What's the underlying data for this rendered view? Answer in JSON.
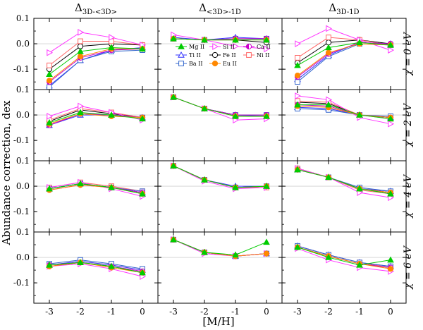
{
  "chart_data": {
    "type": "line",
    "title": "",
    "xlabel": "[M/H]",
    "ylabel": "Abundance correction, dex",
    "x": [
      -3,
      -2,
      -1,
      0
    ],
    "x_ticks": [
      "-3",
      "-2",
      "-1",
      "0"
    ],
    "ylim": [
      -0.18,
      0.1
    ],
    "y_ticks": [
      0.1,
      0.0,
      -0.1
    ],
    "y_tick_labels": [
      "0.1",
      "0.0",
      "-0.1"
    ],
    "grid": false,
    "zero_line": true,
    "column_titles": [
      {
        "main": "Δ",
        "sub": "3D-<3D>"
      },
      {
        "main": "Δ",
        "sub": "<3D>-1D"
      },
      {
        "main": "Δ",
        "sub": "3D-1D"
      }
    ],
    "row_titles": [
      "χ = 0 eV",
      "χ = 2 eV",
      "χ = 4 eV",
      "χ = 6 eV"
    ],
    "legend": {
      "placement": "inside top-left panel of column 2",
      "entries": [
        {
          "key": "MgII",
          "label": "Mg II"
        },
        {
          "key": "SiII",
          "label": "Si II"
        },
        {
          "key": "CaII",
          "label": "Ca II"
        },
        {
          "key": "TiII",
          "label": "Ti II"
        },
        {
          "key": "FeII",
          "label": "Fe II"
        },
        {
          "key": "NiII",
          "label": "Ni II"
        },
        {
          "key": "BaII",
          "label": "Ba II"
        },
        {
          "key": "EuII",
          "label": "Eu II"
        }
      ]
    },
    "series_styles": {
      "MgII": {
        "color": "#00cc00",
        "marker": "triangle-up",
        "filled": true
      },
      "SiII": {
        "color": "#ff33ff",
        "marker": "triangle-right",
        "filled": false
      },
      "CaII": {
        "color": "#cc00cc",
        "marker": "half-circle",
        "filled": true
      },
      "TiII": {
        "color": "#3333ff",
        "marker": "triangle-up",
        "filled": false
      },
      "FeII": {
        "color": "#000000",
        "marker": "circle",
        "filled": false
      },
      "NiII": {
        "color": "#ff6666",
        "marker": "square",
        "filled": false
      },
      "BaII": {
        "color": "#3366cc",
        "marker": "square",
        "filled": false
      },
      "EuII": {
        "color": "#ff8800",
        "marker": "circle",
        "filled": true
      }
    },
    "panels": [
      [
        {
          "series": {
            "MgII": [
              -0.12,
              -0.03,
              -0.015,
              -0.02
            ],
            "SiII": [
              -0.035,
              0.045,
              0.025,
              -0.005
            ],
            "CaII": [
              -0.15,
              -0.055,
              -0.025,
              -0.02
            ],
            "TiII": [
              -0.165,
              -0.065,
              -0.025,
              -0.015
            ],
            "FeII": [
              -0.1,
              -0.01,
              0.0,
              -0.005
            ],
            "NiII": [
              -0.085,
              0.01,
              0.01,
              -0.005
            ],
            "BaII": [
              -0.17,
              -0.065,
              -0.03,
              -0.025
            ],
            "EuII": [
              -0.145,
              -0.05,
              -0.02,
              -0.02
            ]
          }
        },
        {
          "series": {
            "MgII": [
              0.02,
              0.015,
              0.015,
              0.015
            ],
            "SiII": [
              0.035,
              0.015,
              -0.01,
              -0.02
            ],
            "CaII": [
              0.02,
              0.015,
              0.02,
              0.02
            ],
            "TiII": [
              0.025,
              0.015,
              0.025,
              0.02
            ],
            "FeII": [
              0.02,
              0.015,
              0.015,
              0.005
            ],
            "NiII": [
              0.02,
              0.015,
              0.02,
              0.02
            ],
            "BaII": [
              0.02,
              0.015,
              0.02,
              0.02
            ],
            "EuII": [
              0.02,
              0.015,
              0.015,
              0.015
            ]
          }
        },
        {
          "series": {
            "MgII": [
              -0.085,
              -0.015,
              0.005,
              -0.005
            ],
            "SiII": [
              0.0,
              0.06,
              0.015,
              -0.025
            ],
            "CaII": [
              -0.13,
              -0.04,
              0.005,
              0.0
            ],
            "TiII": [
              -0.14,
              -0.045,
              0.005,
              0.0
            ],
            "FeII": [
              -0.075,
              0.005,
              0.015,
              0.0
            ],
            "NiII": [
              -0.055,
              0.025,
              0.015,
              -0.005
            ],
            "BaII": [
              -0.15,
              -0.05,
              0.0,
              -0.005
            ],
            "EuII": [
              -0.125,
              -0.035,
              0.0,
              -0.005
            ]
          }
        }
      ],
      [
        {
          "series": {
            "MgII": [
              -0.03,
              0.01,
              0.0,
              -0.015
            ],
            "SiII": [
              -0.005,
              0.035,
              0.01,
              -0.02
            ],
            "CaII": [
              -0.04,
              0.005,
              0.0,
              -0.01
            ],
            "TiII": [
              -0.04,
              0.0,
              0.0,
              -0.01
            ],
            "FeII": [
              -0.025,
              0.02,
              0.005,
              -0.01
            ],
            "NiII": [
              -0.02,
              0.025,
              0.01,
              -0.01
            ],
            "BaII": [
              -0.04,
              0.005,
              0.0,
              -0.01
            ],
            "EuII": [
              -0.035,
              0.005,
              -0.005,
              -0.01
            ]
          }
        },
        {
          "series": {
            "MgII": [
              0.07,
              0.025,
              -0.005,
              -0.005
            ],
            "SiII": [
              0.07,
              0.025,
              -0.02,
              -0.015
            ],
            "CaII": [
              0.07,
              0.025,
              0.0,
              0.0
            ],
            "TiII": [
              0.07,
              0.025,
              0.0,
              -0.005
            ],
            "FeII": [
              0.07,
              0.025,
              0.0,
              0.0
            ],
            "NiII": [
              0.07,
              0.025,
              -0.005,
              -0.005
            ],
            "BaII": [
              0.07,
              0.025,
              0.0,
              0.0
            ],
            "EuII": [
              0.07,
              0.025,
              -0.005,
              -0.005
            ]
          }
        },
        {
          "series": {
            "MgII": [
              0.04,
              0.04,
              0.0,
              -0.015
            ],
            "SiII": [
              0.075,
              0.06,
              -0.01,
              -0.035
            ],
            "CaII": [
              0.04,
              0.035,
              0.0,
              -0.01
            ],
            "TiII": [
              0.03,
              0.025,
              0.0,
              -0.01
            ],
            "FeII": [
              0.05,
              0.045,
              0.0,
              -0.01
            ],
            "NiII": [
              0.055,
              0.05,
              0.0,
              -0.015
            ],
            "BaII": [
              0.025,
              0.02,
              0.0,
              -0.005
            ],
            "EuII": [
              0.035,
              0.03,
              0.0,
              -0.01
            ]
          }
        }
      ],
      [
        {
          "series": {
            "MgII": [
              -0.01,
              0.01,
              -0.005,
              -0.03
            ],
            "SiII": [
              -0.005,
              0.015,
              -0.01,
              -0.04
            ],
            "CaII": [
              -0.015,
              0.005,
              -0.005,
              -0.025
            ],
            "TiII": [
              -0.01,
              0.01,
              -0.005,
              -0.025
            ],
            "FeII": [
              -0.01,
              0.01,
              -0.005,
              -0.025
            ],
            "NiII": [
              -0.005,
              0.015,
              0.0,
              -0.02
            ],
            "BaII": [
              -0.01,
              0.01,
              -0.005,
              -0.02
            ],
            "EuII": [
              -0.015,
              0.005,
              -0.005,
              -0.03
            ]
          }
        },
        {
          "series": {
            "MgII": [
              0.08,
              0.025,
              -0.005,
              0.0
            ],
            "SiII": [
              0.08,
              0.02,
              -0.01,
              -0.005
            ],
            "CaII": [
              0.08,
              0.025,
              -0.005,
              0.0
            ],
            "TiII": [
              0.08,
              0.025,
              0.0,
              0.0
            ],
            "FeII": [
              0.08,
              0.025,
              -0.005,
              0.0
            ],
            "NiII": [
              0.08,
              0.025,
              -0.005,
              -0.005
            ],
            "BaII": [
              0.08,
              0.025,
              -0.005,
              0.0
            ],
            "EuII": [
              0.08,
              0.025,
              -0.005,
              0.0
            ]
          }
        },
        {
          "series": {
            "MgII": [
              0.065,
              0.035,
              -0.01,
              -0.03
            ],
            "SiII": [
              0.07,
              0.035,
              -0.025,
              -0.045
            ],
            "CaII": [
              0.065,
              0.035,
              -0.01,
              -0.025
            ],
            "TiII": [
              0.065,
              0.035,
              -0.01,
              -0.02
            ],
            "FeII": [
              0.07,
              0.035,
              -0.01,
              -0.025
            ],
            "NiII": [
              0.07,
              0.035,
              -0.015,
              -0.03
            ],
            "BaII": [
              0.065,
              0.035,
              -0.005,
              -0.02
            ],
            "EuII": [
              0.065,
              0.035,
              -0.01,
              -0.025
            ]
          }
        }
      ],
      [
        {
          "series": {
            "MgII": [
              -0.03,
              -0.02,
              -0.035,
              -0.06
            ],
            "SiII": [
              -0.035,
              -0.025,
              -0.045,
              -0.075
            ],
            "CaII": [
              -0.03,
              -0.02,
              -0.035,
              -0.055
            ],
            "TiII": [
              -0.03,
              -0.015,
              -0.03,
              -0.05
            ],
            "FeII": [
              -0.035,
              -0.02,
              -0.035,
              -0.06
            ],
            "NiII": [
              -0.03,
              -0.015,
              -0.03,
              -0.05
            ],
            "BaII": [
              -0.025,
              -0.01,
              -0.025,
              -0.045
            ],
            "EuII": [
              -0.035,
              -0.02,
              -0.04,
              -0.06
            ]
          }
        },
        {
          "series": {
            "MgII": [
              0.07,
              0.02,
              0.01,
              0.06
            ],
            "SiII": [
              0.07,
              0.015,
              0.005,
              0.015
            ],
            "CaII": [
              0.07,
              0.02,
              0.005,
              0.015
            ],
            "TiII": [
              0.07,
              0.02,
              0.005,
              0.015
            ],
            "FeII": [
              0.07,
              0.02,
              0.005,
              0.015
            ],
            "NiII": [
              0.07,
              0.02,
              0.005,
              0.015
            ],
            "BaII": [
              0.07,
              0.02,
              0.005,
              0.015
            ],
            "EuII": [
              0.07,
              0.02,
              0.005,
              0.015
            ]
          }
        },
        {
          "series": {
            "MgII": [
              0.04,
              0.0,
              -0.03,
              -0.01
            ],
            "SiII": [
              0.035,
              -0.01,
              -0.04,
              -0.055
            ],
            "CaII": [
              0.04,
              0.005,
              -0.025,
              -0.04
            ],
            "TiII": [
              0.045,
              0.01,
              -0.02,
              -0.035
            ],
            "FeII": [
              0.04,
              0.005,
              -0.025,
              -0.04
            ],
            "NiII": [
              0.045,
              0.01,
              -0.02,
              -0.04
            ],
            "BaII": [
              0.045,
              0.01,
              -0.02,
              -0.035
            ],
            "EuII": [
              0.04,
              0.005,
              -0.025,
              -0.045
            ]
          }
        }
      ]
    ]
  }
}
